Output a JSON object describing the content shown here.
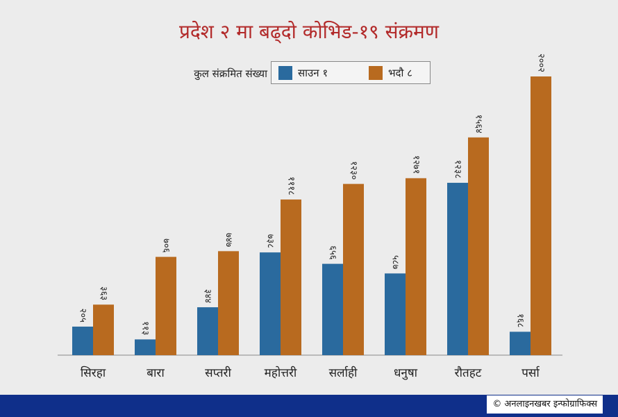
{
  "title": "प्रदेश २ मा बढ्दो कोभिड-१९ संक्रमण",
  "legend_label": "कुल संक्रमित संख्या",
  "credit": {
    "symbol": "©",
    "text": "अनलाइनखबर इन्फोग्राफिक्स"
  },
  "colors": {
    "series_1": "#2a6a9e",
    "series_2": "#b86a1f",
    "title": "#b22a2a",
    "footer": "#0f2f8a"
  },
  "chart_data": {
    "type": "bar",
    "categories": [
      "सिरहा",
      "बारा",
      "सप्तरी",
      "महोत्तरी",
      "सर्लाही",
      "धनुषा",
      "रौतहट",
      "पर्सा"
    ],
    "series": [
      {
        "name": "साउन १",
        "values": [
          205,
          113,
          344,
          738,
          656,
          587,
          1238,
          168
        ],
        "labels": [
          "२०५",
          "११३",
          "३४४",
          "७३८",
          "६५६",
          "५८७",
          "१२३८",
          "१६८"
        ]
      },
      {
        "name": "भदौ ८",
        "values": [
          363,
          706,
          747,
          1118,
          1230,
          1271,
          1564,
          2002
        ],
        "labels": [
          "३६३",
          "७०६",
          "७४७",
          "१११८",
          "१२३०",
          "१२७१",
          "१५६४",
          "२००२"
        ]
      }
    ],
    "ylim": [
      0,
      2002
    ],
    "grid": false,
    "legend_position": "top"
  }
}
